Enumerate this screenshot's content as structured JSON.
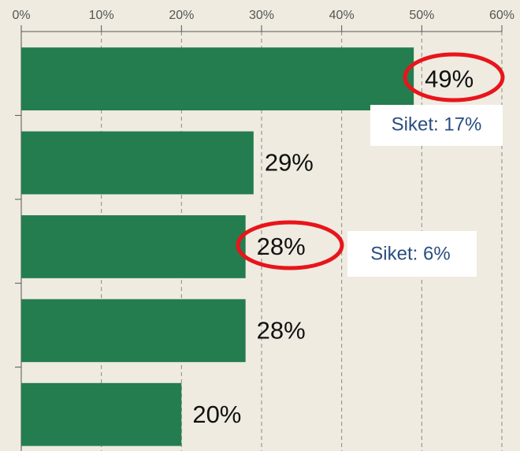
{
  "chart_data": {
    "type": "bar",
    "orientation": "horizontal",
    "categories": [
      null,
      null,
      null,
      null,
      null
    ],
    "values": [
      49,
      29,
      28,
      28,
      20
    ],
    "value_labels": [
      "49%",
      "29%",
      "28%",
      "28%",
      "20%"
    ],
    "color": "#237d4f",
    "xlim": [
      0,
      60
    ],
    "xticks": [
      {
        "value": 0,
        "label": "0%"
      },
      {
        "value": 10,
        "label": "10%"
      },
      {
        "value": 20,
        "label": "20%"
      },
      {
        "value": 30,
        "label": "30%"
      },
      {
        "value": 40,
        "label": "40%"
      },
      {
        "value": 50,
        "label": "50%"
      },
      {
        "value": 60,
        "label": "60%"
      }
    ],
    "grid": true,
    "annotations": [
      "Siket: 17%",
      "Siket: 6%"
    ]
  }
}
